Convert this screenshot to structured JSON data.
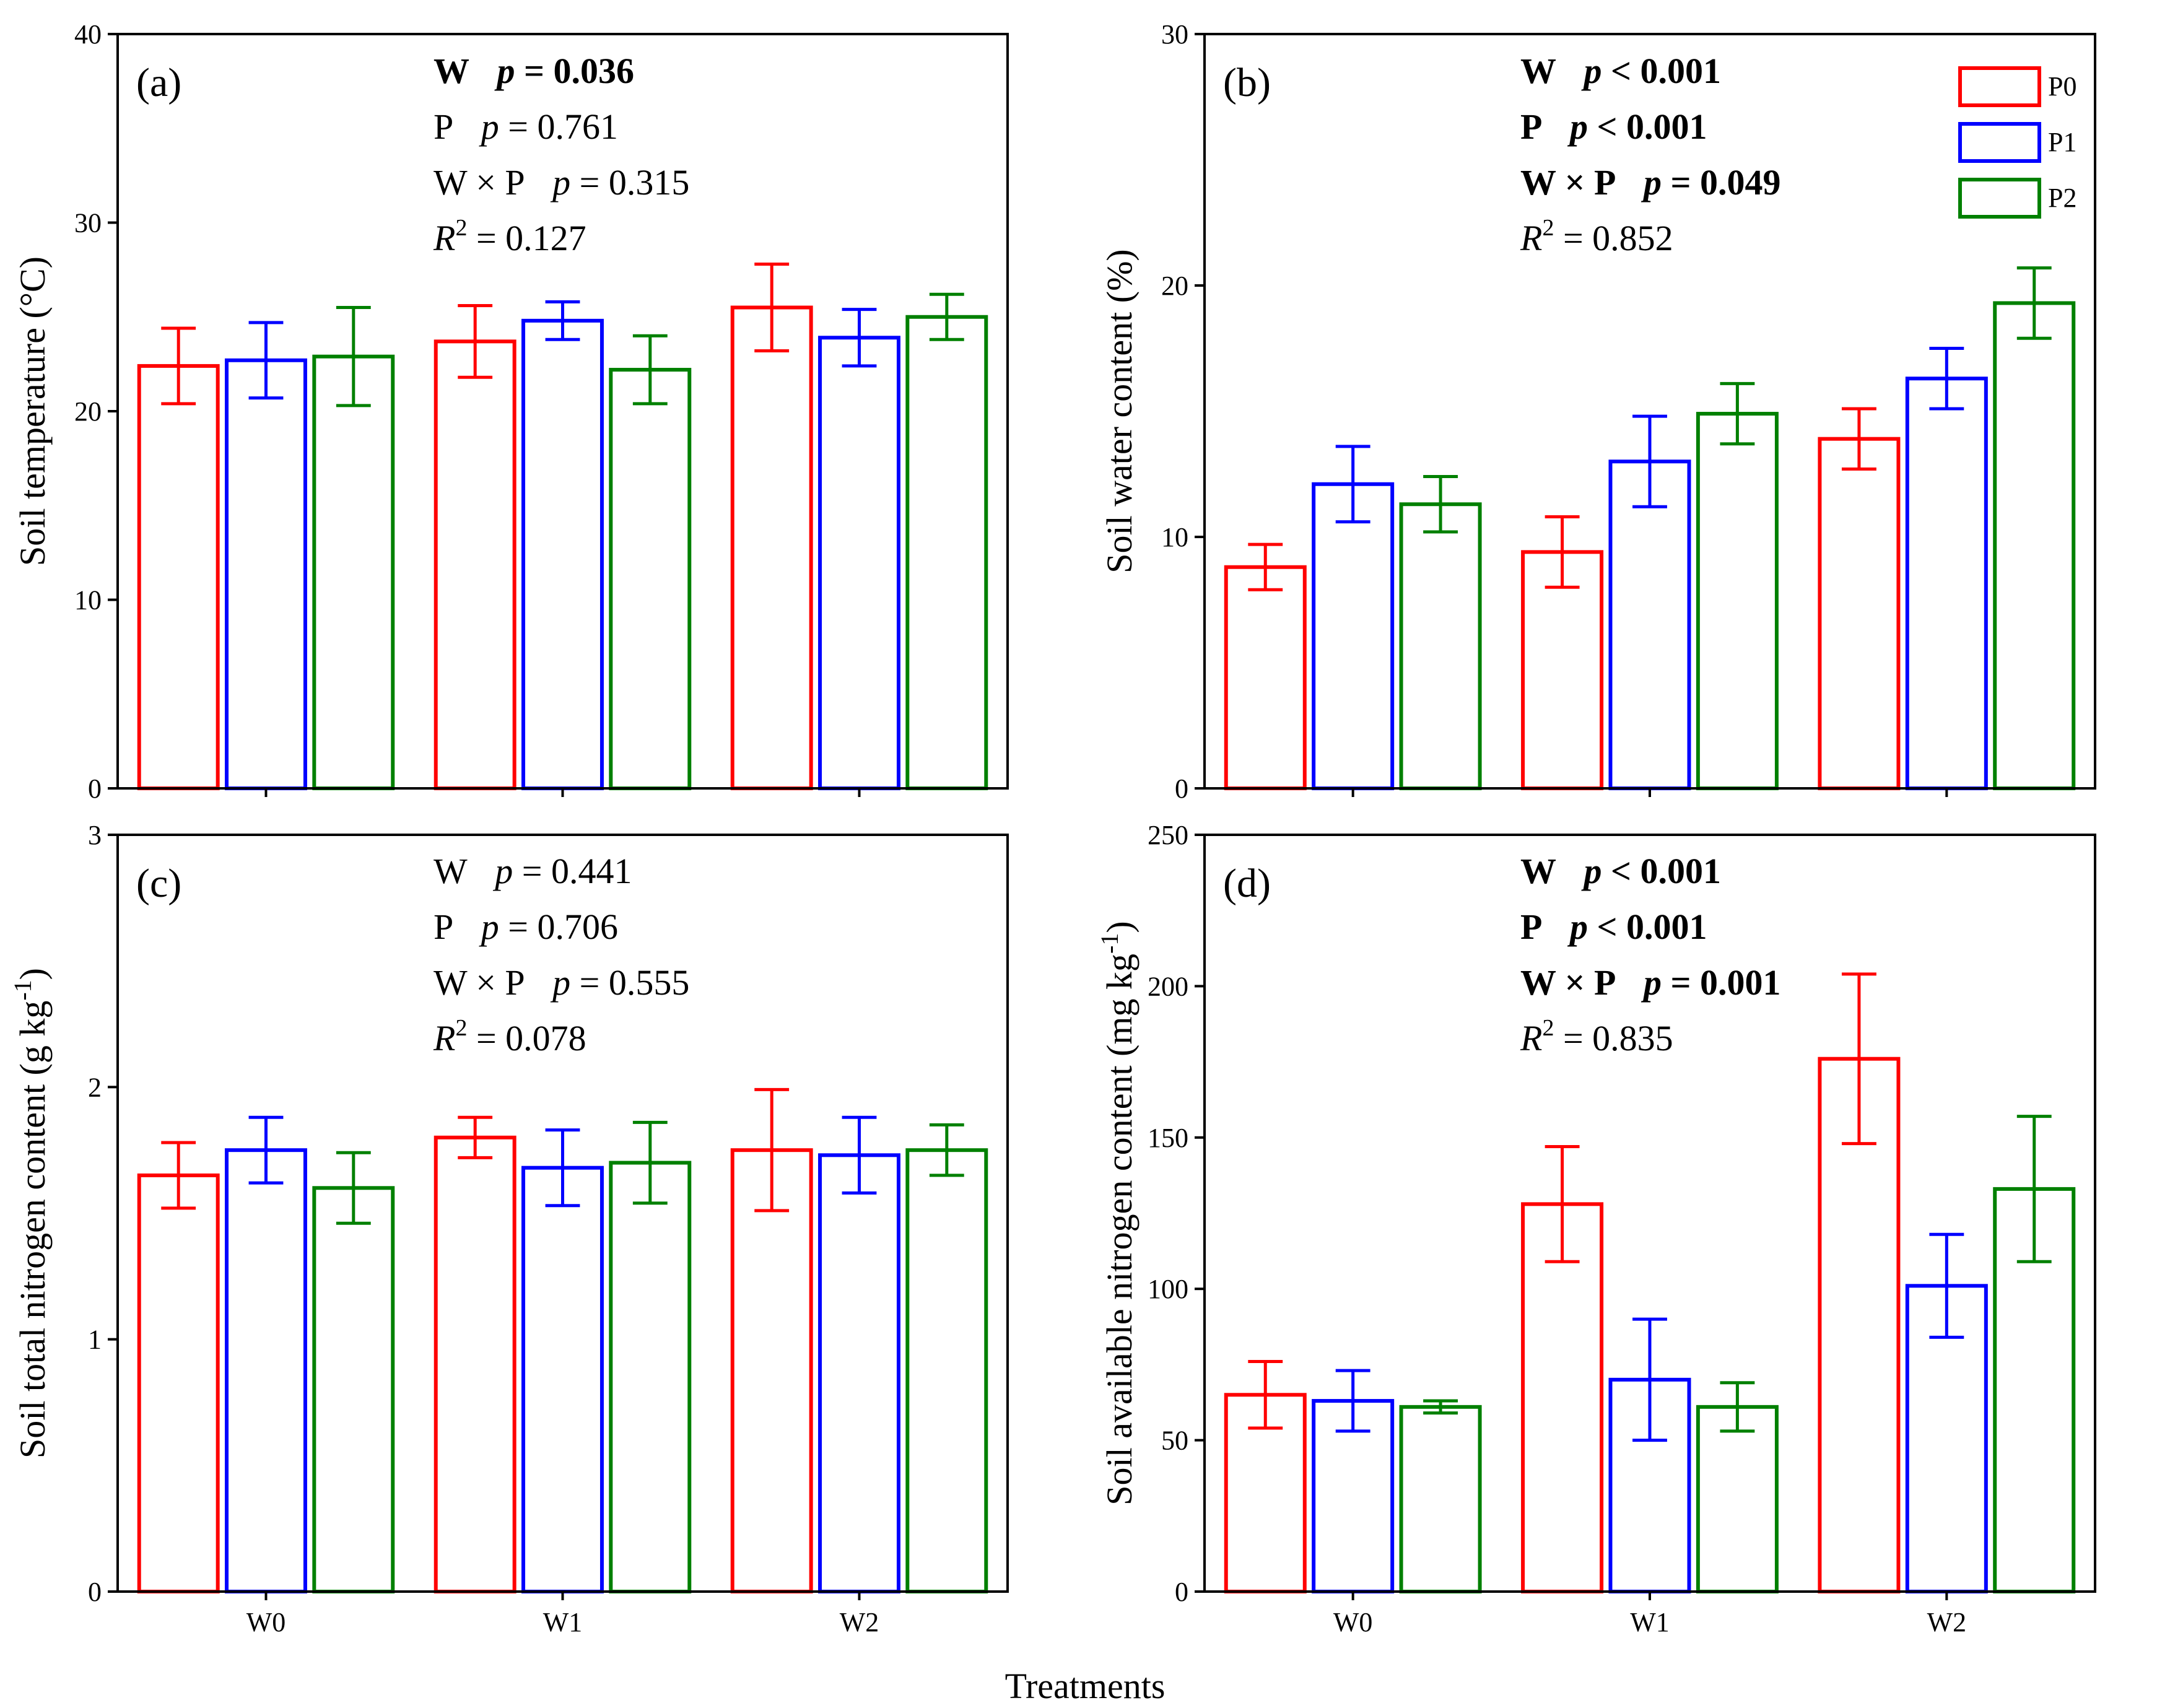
{
  "x_axis_title": "Treatments",
  "categories": [
    "W0",
    "W1",
    "W2"
  ],
  "series_colors": {
    "P0": "#ff0000",
    "P1": "#0000ff",
    "P2": "#008000"
  },
  "legend": [
    {
      "name": "P0",
      "color": "#ff0000"
    },
    {
      "name": "P1",
      "color": "#0000ff"
    },
    {
      "name": "P2",
      "color": "#008000"
    }
  ],
  "chart_data": [
    {
      "type": "bar",
      "panel": "(a)",
      "ylabel": "Soil temperature (°C)",
      "ylim": [
        0,
        40
      ],
      "yticks": [
        0,
        10,
        20,
        30,
        40
      ],
      "categories": [
        "W0",
        "W1",
        "W2"
      ],
      "series": [
        {
          "name": "P0",
          "values": [
            22.4,
            23.7,
            25.5
          ],
          "errors": [
            2.0,
            1.9,
            2.3
          ]
        },
        {
          "name": "P1",
          "values": [
            22.7,
            24.8,
            23.9
          ],
          "errors": [
            2.0,
            1.0,
            1.5
          ]
        },
        {
          "name": "P2",
          "values": [
            22.9,
            22.2,
            25.0
          ],
          "errors": [
            2.6,
            1.8,
            1.2
          ]
        }
      ],
      "stats": [
        {
          "term": "W",
          "p": "p = 0.036",
          "bold": true
        },
        {
          "term": "P",
          "p": "p = 0.761",
          "bold": false
        },
        {
          "term": "W × P",
          "p": "p = 0.315",
          "bold": false
        },
        {
          "term": "R2",
          "value": "= 0.127"
        }
      ]
    },
    {
      "type": "bar",
      "panel": "(b)",
      "ylabel": "Soil water content (%)",
      "ylim": [
        0,
        30
      ],
      "yticks": [
        0,
        10,
        20,
        30
      ],
      "categories": [
        "W0",
        "W1",
        "W2"
      ],
      "series": [
        {
          "name": "P0",
          "values": [
            8.8,
            9.4,
            13.9
          ],
          "errors": [
            0.9,
            1.4,
            1.2
          ]
        },
        {
          "name": "P1",
          "values": [
            12.1,
            13.0,
            16.3
          ],
          "errors": [
            1.5,
            1.8,
            1.2
          ]
        },
        {
          "name": "P2",
          "values": [
            11.3,
            14.9,
            19.3
          ],
          "errors": [
            1.1,
            1.2,
            1.4
          ]
        }
      ],
      "stats": [
        {
          "term": "W",
          "p": "p < 0.001",
          "bold": true
        },
        {
          "term": "P",
          "p": "p < 0.001",
          "bold": true
        },
        {
          "term": "W × P",
          "p": "p = 0.049",
          "bold": true
        },
        {
          "term": "R2",
          "value": "= 0.852"
        }
      ]
    },
    {
      "type": "bar",
      "panel": "(c)",
      "ylabel": "Soil total nitrogen content (g kg-1)",
      "ylim": [
        0,
        3
      ],
      "yticks": [
        0,
        1,
        2,
        3
      ],
      "categories": [
        "W0",
        "W1",
        "W2"
      ],
      "series": [
        {
          "name": "P0",
          "values": [
            1.65,
            1.8,
            1.75
          ],
          "errors": [
            0.13,
            0.08,
            0.24
          ]
        },
        {
          "name": "P1",
          "values": [
            1.75,
            1.68,
            1.73
          ],
          "errors": [
            0.13,
            0.15,
            0.15
          ]
        },
        {
          "name": "P2",
          "values": [
            1.6,
            1.7,
            1.75
          ],
          "errors": [
            0.14,
            0.16,
            0.1
          ]
        }
      ],
      "stats": [
        {
          "term": "W",
          "p": "p = 0.441",
          "bold": false
        },
        {
          "term": "P",
          "p": "p = 0.706",
          "bold": false
        },
        {
          "term": "W × P",
          "p": "p = 0.555",
          "bold": false
        },
        {
          "term": "R2",
          "value": "= 0.078"
        }
      ]
    },
    {
      "type": "bar",
      "panel": "(d)",
      "ylabel": "Soil available nitrogen content (mg kg-1)",
      "ylim": [
        0,
        250
      ],
      "yticks": [
        0,
        50,
        100,
        150,
        200,
        250
      ],
      "categories": [
        "W0",
        "W1",
        "W2"
      ],
      "series": [
        {
          "name": "P0",
          "values": [
            65,
            128,
            176
          ],
          "errors": [
            11,
            19,
            28
          ]
        },
        {
          "name": "P1",
          "values": [
            63,
            70,
            101
          ],
          "errors": [
            10,
            20,
            17
          ]
        },
        {
          "name": "P2",
          "values": [
            61,
            61,
            133
          ],
          "errors": [
            2,
            8,
            24
          ]
        }
      ],
      "stats": [
        {
          "term": "W",
          "p": "p < 0.001",
          "bold": true
        },
        {
          "term": "P",
          "p": "p < 0.001",
          "bold": true
        },
        {
          "term": "W × P",
          "p": "p = 0.001",
          "bold": true
        },
        {
          "term": "R2",
          "value": "= 0.835"
        }
      ]
    }
  ]
}
